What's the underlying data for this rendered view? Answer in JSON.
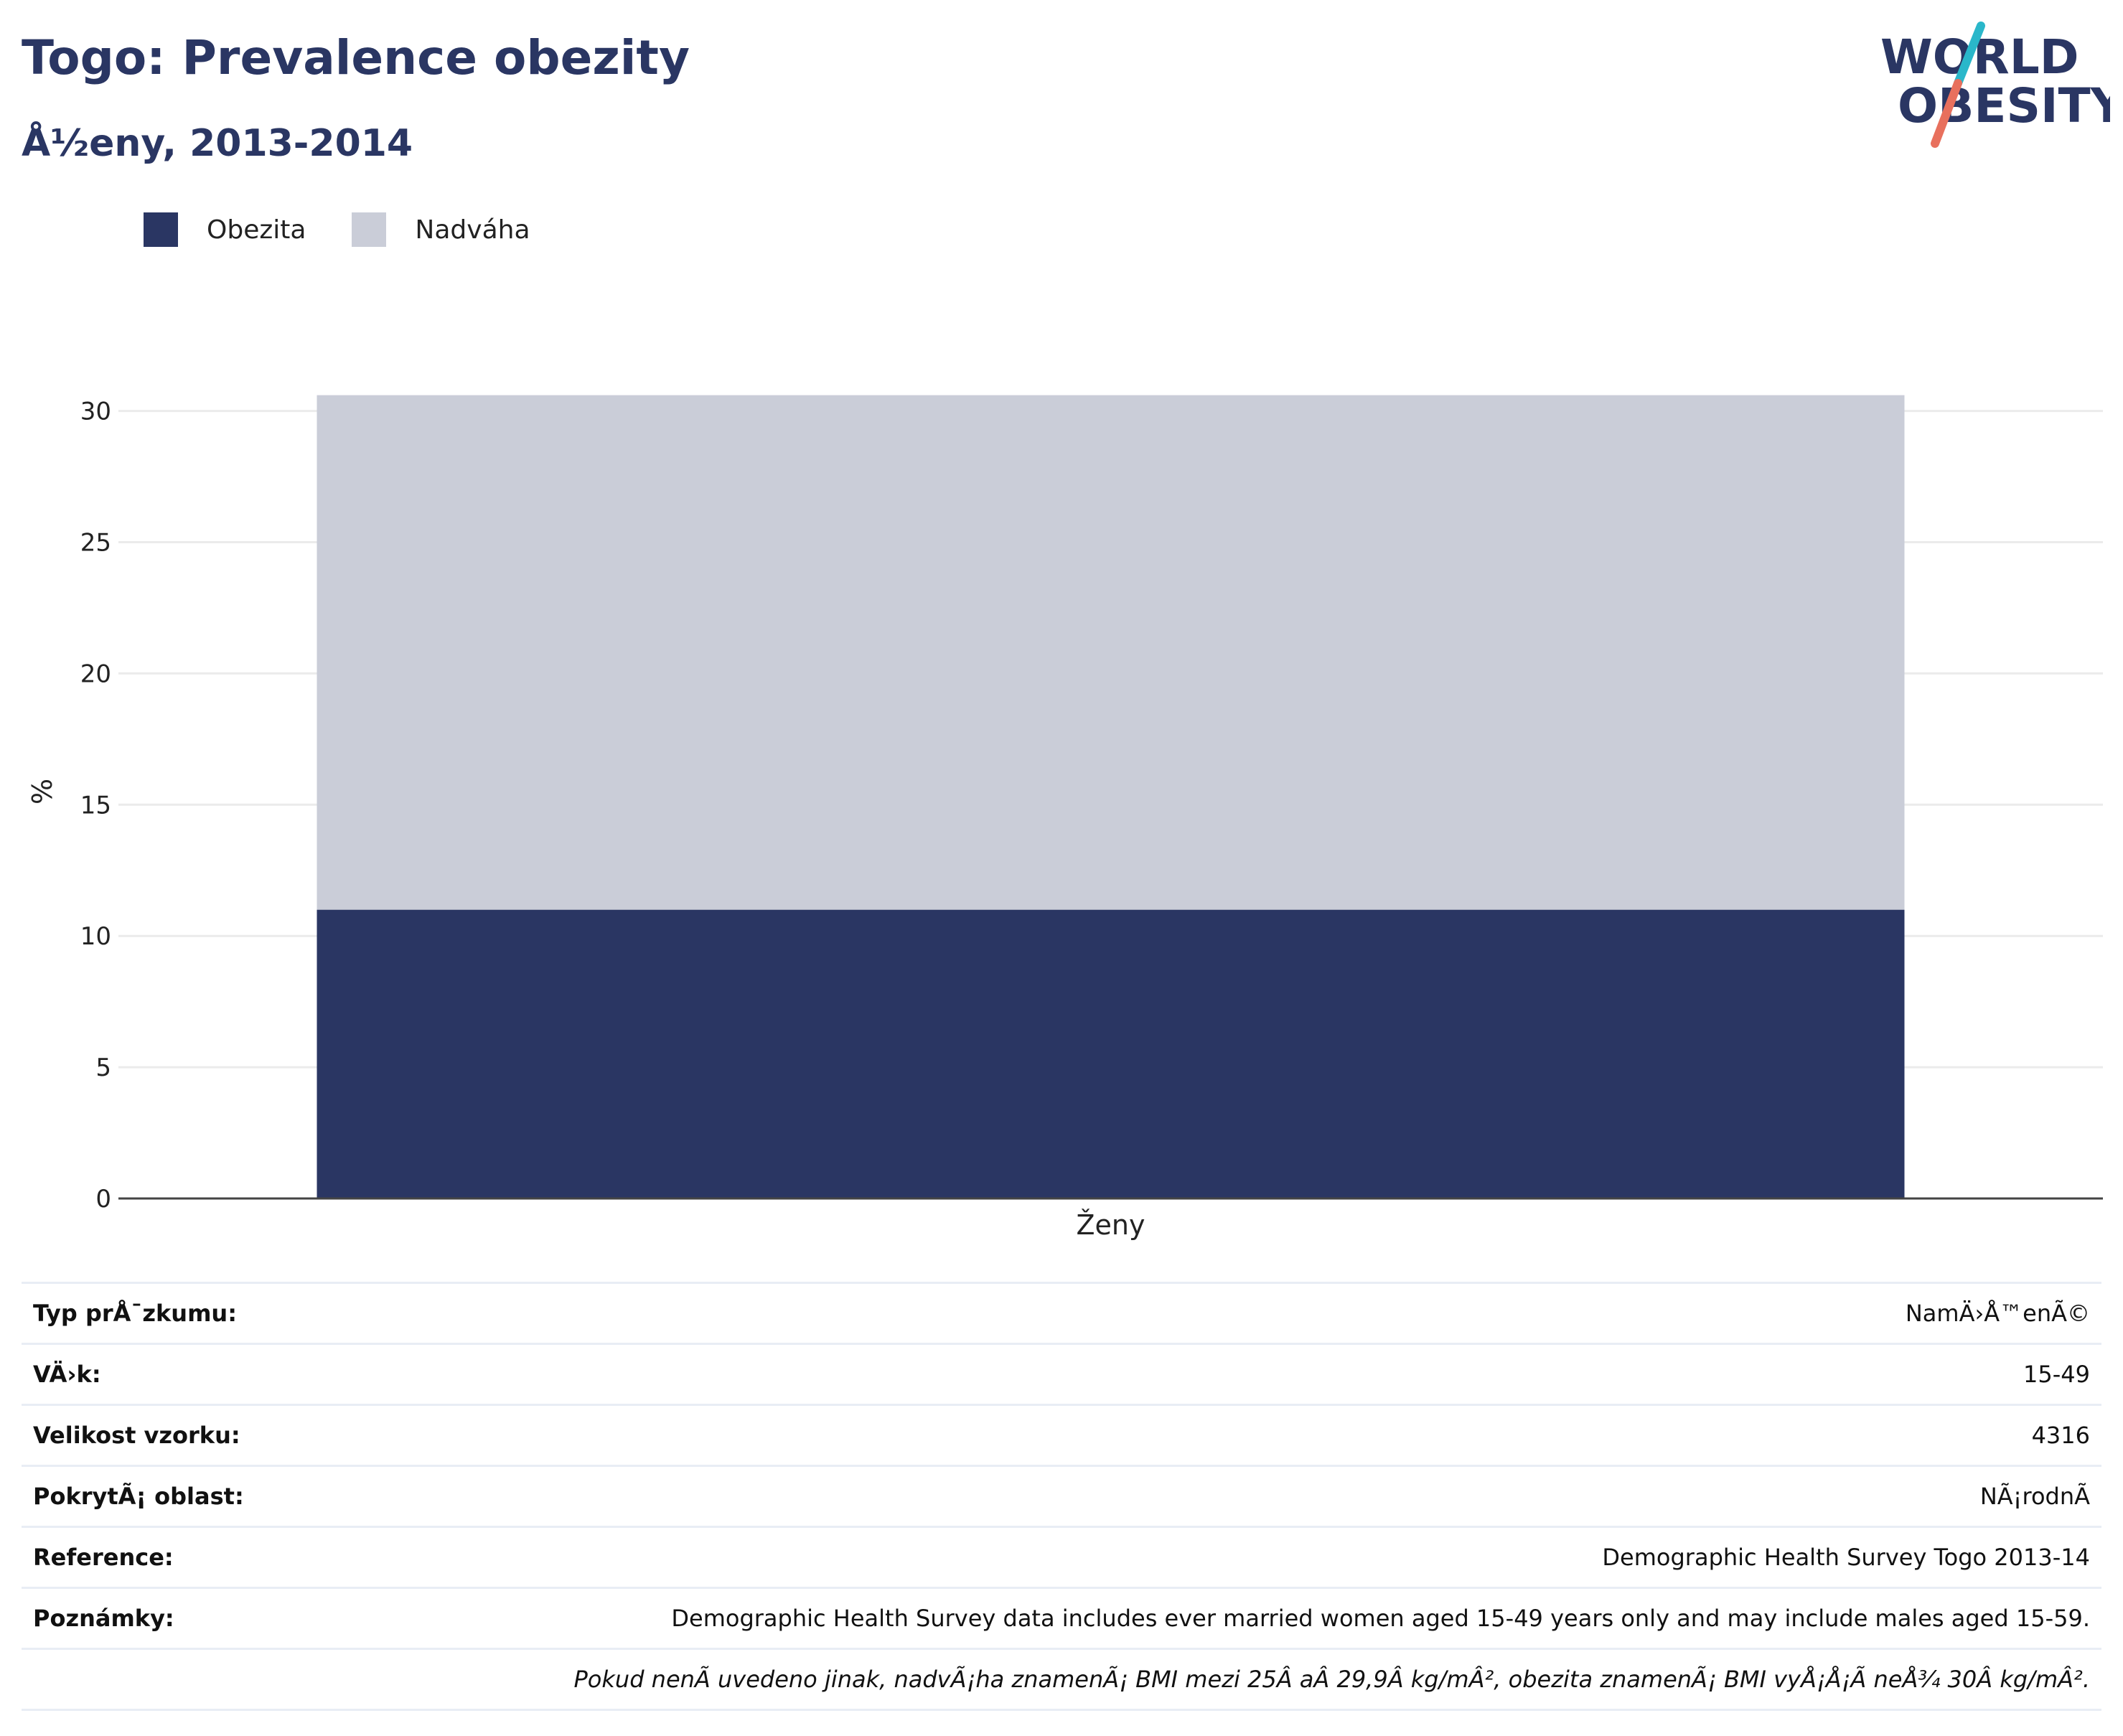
{
  "header": {
    "title": "Togo: Prevalence obezity",
    "subtitle": "Å½eny, 2013-2014"
  },
  "logo": {
    "line1": "WORLD",
    "line2": "OBESITY",
    "accent_teal": "#2ab7ca",
    "accent_red": "#e8705d"
  },
  "legend": [
    {
      "label": "Obezita",
      "color": "#2a3663"
    },
    {
      "label": "Nadváha",
      "color": "#cacdd8"
    }
  ],
  "chart_data": {
    "type": "bar",
    "stacked": true,
    "categories": [
      "Ženy"
    ],
    "series": [
      {
        "name": "Obezita",
        "values": [
          11.0
        ],
        "color": "#2a3663"
      },
      {
        "name": "Nadváha",
        "values": [
          19.6
        ],
        "color": "#cacdd8"
      }
    ],
    "ylabel": "%",
    "ylim": [
      0,
      31
    ],
    "yticks": [
      0,
      5,
      10,
      15,
      20,
      25,
      30
    ],
    "grid": true,
    "legend_position": "top-left"
  },
  "info_table": [
    {
      "key": "Typ prÅ¯zkumu:",
      "value": "NamÄ›Å™enÃ©"
    },
    {
      "key": "VÄ›k:",
      "value": "15-49"
    },
    {
      "key": "Velikost vzorku:",
      "value": "4316"
    },
    {
      "key": "PokrytÃ¡ oblast:",
      "value": "NÃ¡rodnÃ"
    },
    {
      "key": "Reference:",
      "value": "Demographic Health Survey Togo 2013-14"
    },
    {
      "key": "Poznámky:",
      "value": "Demographic Health Survey data includes ever married women aged 15-49 years only and may include males aged 15-59."
    }
  ],
  "footnote": "Pokud nenÃ uvedeno jinak, nadvÃ¡ha znamenÃ¡ BMI mezi 25Â aÂ 29,9Â kg/mÂ², obezita znamenÃ¡ BMI vyÅ¡Å¡Ã neÅ¾ 30Â kg/mÂ²."
}
